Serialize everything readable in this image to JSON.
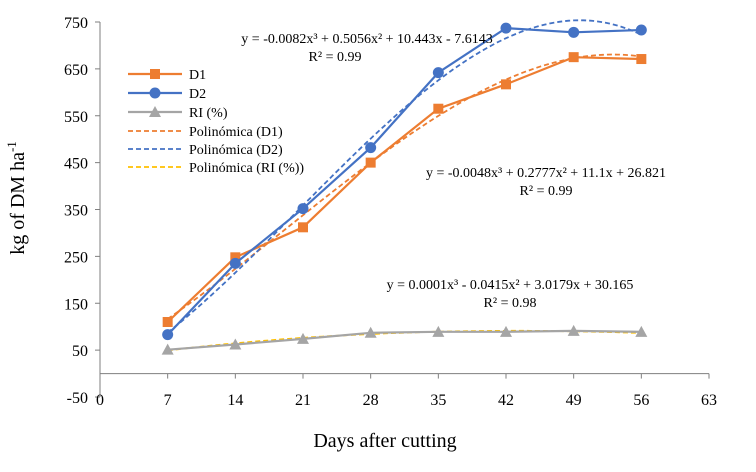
{
  "chart_data": {
    "type": "line",
    "title": "",
    "xlabel": "Days after cutting",
    "ylabel": "kg of DM ha",
    "ylabel_superscript": "-1",
    "xlim": [
      0,
      63
    ],
    "ylim": [
      -50,
      750
    ],
    "x_ticks": [
      0,
      7,
      14,
      21,
      28,
      35,
      42,
      49,
      56,
      63
    ],
    "y_ticks": [
      -50,
      50,
      150,
      250,
      350,
      450,
      550,
      650,
      750
    ],
    "x": [
      7,
      14,
      21,
      28,
      35,
      42,
      49,
      56
    ],
    "series": [
      {
        "name": "D1",
        "color": "#ED7D31",
        "marker": "square",
        "values": [
          110,
          248,
          312,
          450,
          565,
          617,
          675,
          671
        ]
      },
      {
        "name": "D2",
        "color": "#4472C4",
        "marker": "circle",
        "values": [
          83,
          235,
          352,
          482,
          642,
          737,
          728,
          733
        ]
      },
      {
        "name": "RI (%)",
        "color": "#A5A5A5",
        "marker": "triangle",
        "values": [
          51,
          62,
          74,
          87,
          89,
          89,
          91,
          89
        ]
      }
    ],
    "trendlines": [
      {
        "name": "Polinómica (D1)",
        "color": "#ED7D31",
        "of": "D1",
        "coef": [
          -0.0048,
          0.2777,
          11.1,
          26.821
        ]
      },
      {
        "name": "Polinómica (D2)",
        "color": "#4472C4",
        "of": "D2",
        "coef": [
          -0.0082,
          0.5056,
          10.443,
          -7.6143
        ]
      },
      {
        "name": "Polinómica (RI (%))",
        "color": "#FFC000",
        "of": "RI (%)",
        "coef": [
          0.0001,
          -0.0415,
          3.0179,
          30.165
        ]
      }
    ],
    "legend": {
      "placement": "upper-left",
      "entries": [
        "D1",
        "D2",
        "RI (%)",
        "Polinómica (D1)",
        "Polinómica (D2)",
        "Polinómica (RI (%))"
      ]
    },
    "annotations": [
      {
        "series": "D2",
        "equation": "y = -0.0082x³ + 0.5056x² + 10.443x - 7.6143",
        "r2": "R² = 0.99"
      },
      {
        "series": "D1",
        "equation": "y = -0.0048x³ + 0.2777x² + 11.1x + 26.821",
        "r2": "R² = 0.99"
      },
      {
        "series": "RI (%)",
        "equation": "y = 0.0001x³ - 0.0415x² + 3.0179x + 30.165",
        "r2": "R² = 0.98"
      }
    ],
    "grid": false
  }
}
